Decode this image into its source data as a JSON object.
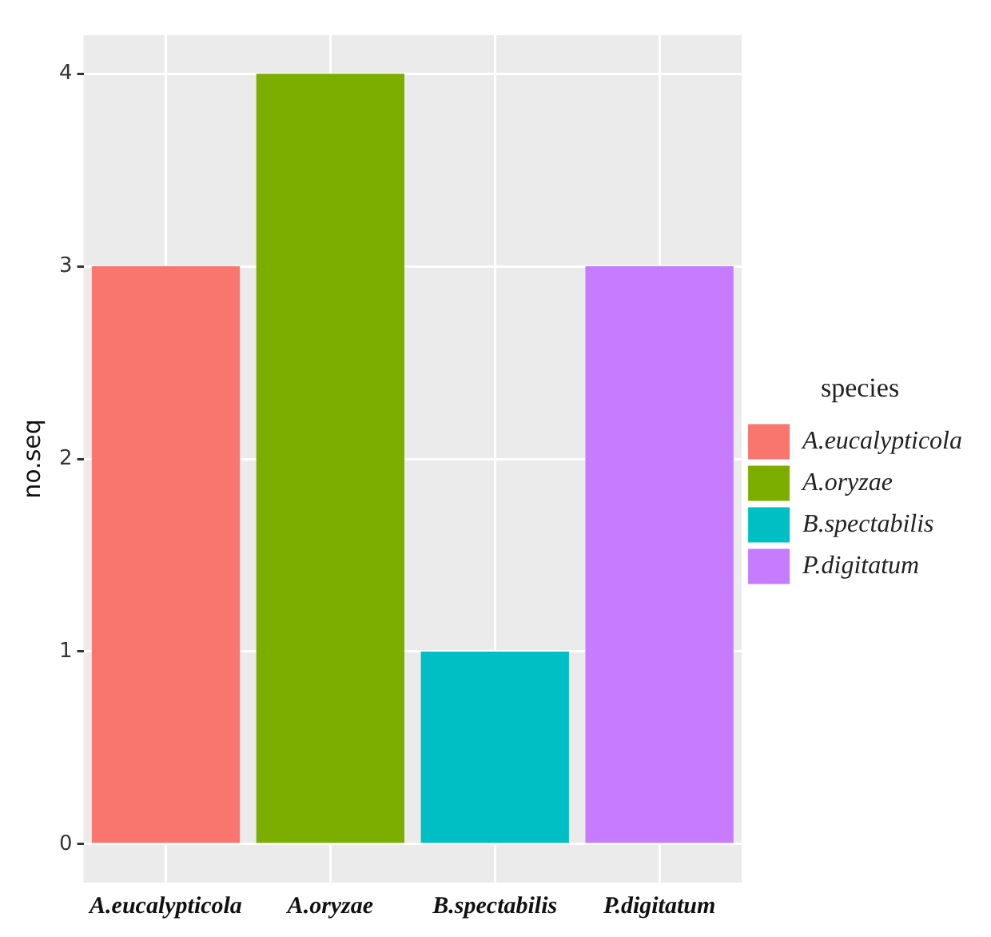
{
  "chart_data": {
    "type": "bar",
    "ylabel": "no.seq",
    "legend_title": "species",
    "categories": [
      "A.eucalypticola",
      "A.oryzae",
      "B.spectabilis",
      "P.digitatum"
    ],
    "series": [
      {
        "name": "A.eucalypticola",
        "color": "#f8766d",
        "values": [
          3,
          null,
          null,
          null
        ]
      },
      {
        "name": "A.oryzae",
        "color": "#7cae00",
        "values": [
          null,
          4,
          null,
          null
        ]
      },
      {
        "name": "B.spectabilis",
        "color": "#00bfc4",
        "values": [
          null,
          null,
          1,
          null
        ]
      },
      {
        "name": "P.digitatum",
        "color": "#c77cff",
        "values": [
          null,
          null,
          null,
          3
        ]
      }
    ],
    "ylim": [
      -0.2,
      4.2
    ],
    "yticks": [
      0,
      1,
      2,
      3,
      4
    ],
    "grid": true,
    "legend": "right"
  }
}
